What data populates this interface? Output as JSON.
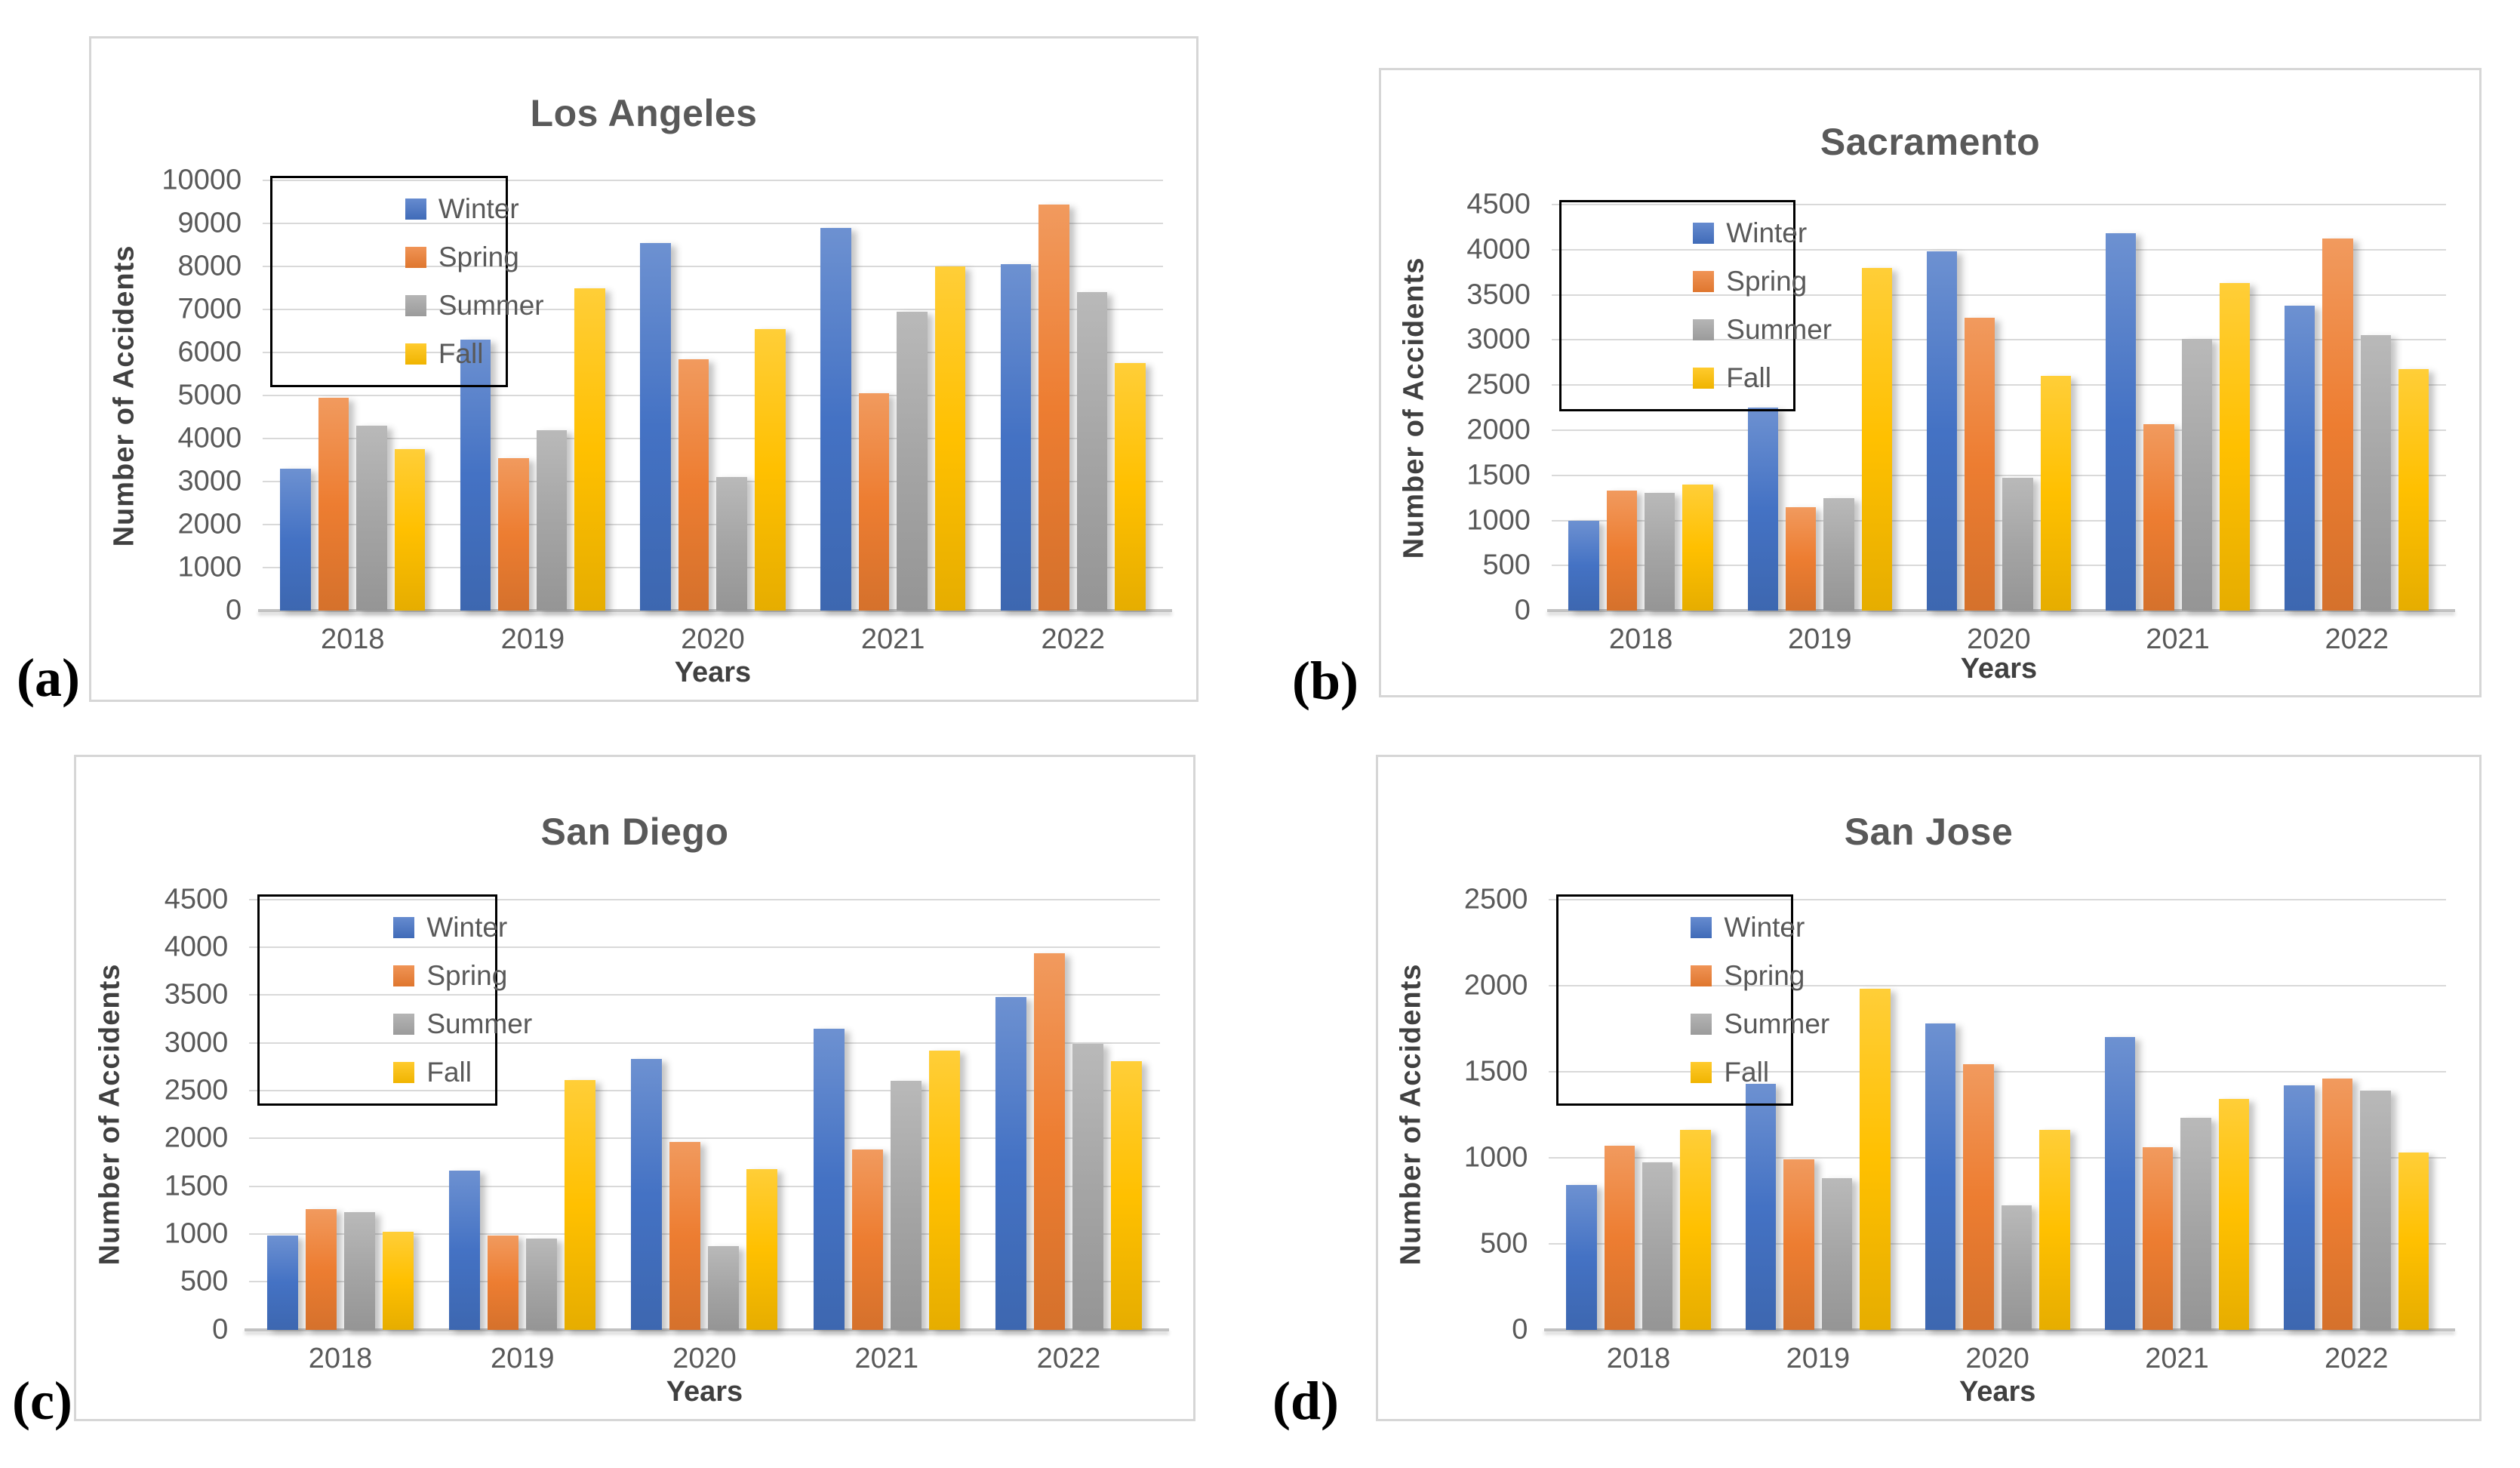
{
  "figure": {
    "description": "Seasonal number of accidents per year (2018-2022) for four California cities",
    "colors": {
      "winter": "#4472C4",
      "spring": "#ED7D31",
      "summer": "#A5A5A5",
      "fall": "#FFC000",
      "title_text": "#595959",
      "tick_text": "#595959",
      "axis_title_text": "#404040",
      "gridline": "#D9D9D9",
      "panel_border": "#D6D6D6",
      "legend_border": "#000000",
      "panel_label_text": "#000000"
    }
  },
  "chart_data": [
    {
      "type": "bar",
      "panel_label": "(a)",
      "title": "Los Angeles",
      "xlabel": "Years",
      "ylabel": "Number of Accidents",
      "ylim": [
        0,
        10000
      ],
      "ytick_step": 1000,
      "grid": true,
      "legend_position": "top-left",
      "categories": [
        "2018",
        "2019",
        "2020",
        "2021",
        "2022"
      ],
      "series": [
        {
          "name": "Winter",
          "color_key": "winter",
          "values": [
            3300,
            6300,
            8550,
            8900,
            8050
          ]
        },
        {
          "name": "Spring",
          "color_key": "spring",
          "values": [
            4950,
            3550,
            5850,
            5050,
            9450
          ]
        },
        {
          "name": "Summer",
          "color_key": "summer",
          "values": [
            4300,
            4200,
            3100,
            6950,
            7400
          ]
        },
        {
          "name": "Fall",
          "color_key": "fall",
          "values": [
            3750,
            7500,
            6550,
            8000,
            5750
          ]
        }
      ]
    },
    {
      "type": "bar",
      "panel_label": "(b)",
      "title": "Sacramento",
      "xlabel": "Years",
      "ylabel": "Number of Accidents",
      "ylim": [
        0,
        4500
      ],
      "ytick_step": 500,
      "grid": true,
      "legend_position": "top-left",
      "categories": [
        "2018",
        "2019",
        "2020",
        "2021",
        "2022"
      ],
      "series": [
        {
          "name": "Winter",
          "color_key": "winter",
          "values": [
            1000,
            2250,
            3980,
            4180,
            3380
          ]
        },
        {
          "name": "Spring",
          "color_key": "spring",
          "values": [
            1330,
            1150,
            3250,
            2070,
            4120
          ]
        },
        {
          "name": "Summer",
          "color_key": "summer",
          "values": [
            1310,
            1250,
            1470,
            3010,
            3050
          ]
        },
        {
          "name": "Fall",
          "color_key": "fall",
          "values": [
            1400,
            3800,
            2600,
            3630,
            2680
          ]
        }
      ]
    },
    {
      "type": "bar",
      "panel_label": "(c)",
      "title": "San Diego",
      "xlabel": "Years",
      "ylabel": "Number of Accidents",
      "ylim": [
        0,
        4500
      ],
      "ytick_step": 500,
      "grid": true,
      "legend_position": "top-left",
      "categories": [
        "2018",
        "2019",
        "2020",
        "2021",
        "2022"
      ],
      "series": [
        {
          "name": "Winter",
          "color_key": "winter",
          "values": [
            980,
            1660,
            2830,
            3150,
            3480
          ]
        },
        {
          "name": "Spring",
          "color_key": "spring",
          "values": [
            1260,
            980,
            1960,
            1880,
            3940
          ]
        },
        {
          "name": "Summer",
          "color_key": "summer",
          "values": [
            1230,
            950,
            870,
            2600,
            2990
          ]
        },
        {
          "name": "Fall",
          "color_key": "fall",
          "values": [
            1020,
            2610,
            1680,
            2920,
            2810
          ]
        }
      ]
    },
    {
      "type": "bar",
      "panel_label": "(d)",
      "title": "San Jose",
      "xlabel": "Years",
      "ylabel": "Number of Accidents",
      "ylim": [
        0,
        2500
      ],
      "ytick_step": 500,
      "grid": true,
      "legend_position": "top-left",
      "categories": [
        "2018",
        "2019",
        "2020",
        "2021",
        "2022"
      ],
      "series": [
        {
          "name": "Winter",
          "color_key": "winter",
          "values": [
            840,
            1430,
            1780,
            1700,
            1420
          ]
        },
        {
          "name": "Spring",
          "color_key": "spring",
          "values": [
            1070,
            990,
            1540,
            1060,
            1460
          ]
        },
        {
          "name": "Summer",
          "color_key": "summer",
          "values": [
            970,
            880,
            720,
            1230,
            1390
          ]
        },
        {
          "name": "Fall",
          "color_key": "fall",
          "values": [
            1160,
            1980,
            1160,
            1340,
            1030
          ]
        }
      ]
    }
  ]
}
